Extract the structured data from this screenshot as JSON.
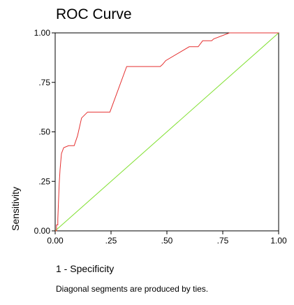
{
  "chart_data": {
    "type": "line",
    "title": "ROC Curve",
    "xlabel": "1 - Specificity",
    "ylabel": "Sensitivity",
    "note": "Diagonal segments are produced by ties.",
    "xlim": [
      0,
      1
    ],
    "ylim": [
      0,
      1
    ],
    "x_ticks": [
      0,
      0.25,
      0.5,
      0.75,
      1.0
    ],
    "x_tick_labels": [
      "0.00",
      ".25",
      ".50",
      ".75",
      "1.00"
    ],
    "y_ticks": [
      0,
      0.25,
      0.5,
      0.75,
      1.0
    ],
    "y_tick_labels": [
      "0.00",
      ".25",
      ".50",
      ".75",
      "1.00"
    ],
    "grid": false,
    "colors": {
      "roc": "#e53030",
      "reference": "#80e030",
      "axis": "#000000"
    },
    "series": [
      {
        "x": [
          0,
          0.006,
          0.006,
          0.012,
          0.012,
          0.018,
          0.022,
          0.028,
          0.038,
          0.06,
          0.085,
          0.1,
          0.118,
          0.145,
          0.245,
          0.32,
          0.47,
          0.48,
          0.495,
          0.6,
          0.64,
          0.66,
          0.7,
          0.71,
          0.78,
          1.0
        ],
        "y": [
          0,
          0,
          0.03,
          0.03,
          0.06,
          0.24,
          0.31,
          0.39,
          0.42,
          0.43,
          0.43,
          0.48,
          0.57,
          0.6,
          0.6,
          0.83,
          0.83,
          0.84,
          0.86,
          0.93,
          0.93,
          0.96,
          0.96,
          0.97,
          1.0,
          1.0
        ]
      },
      {
        "x": [
          0,
          1
        ],
        "y": [
          0,
          1
        ]
      }
    ]
  }
}
